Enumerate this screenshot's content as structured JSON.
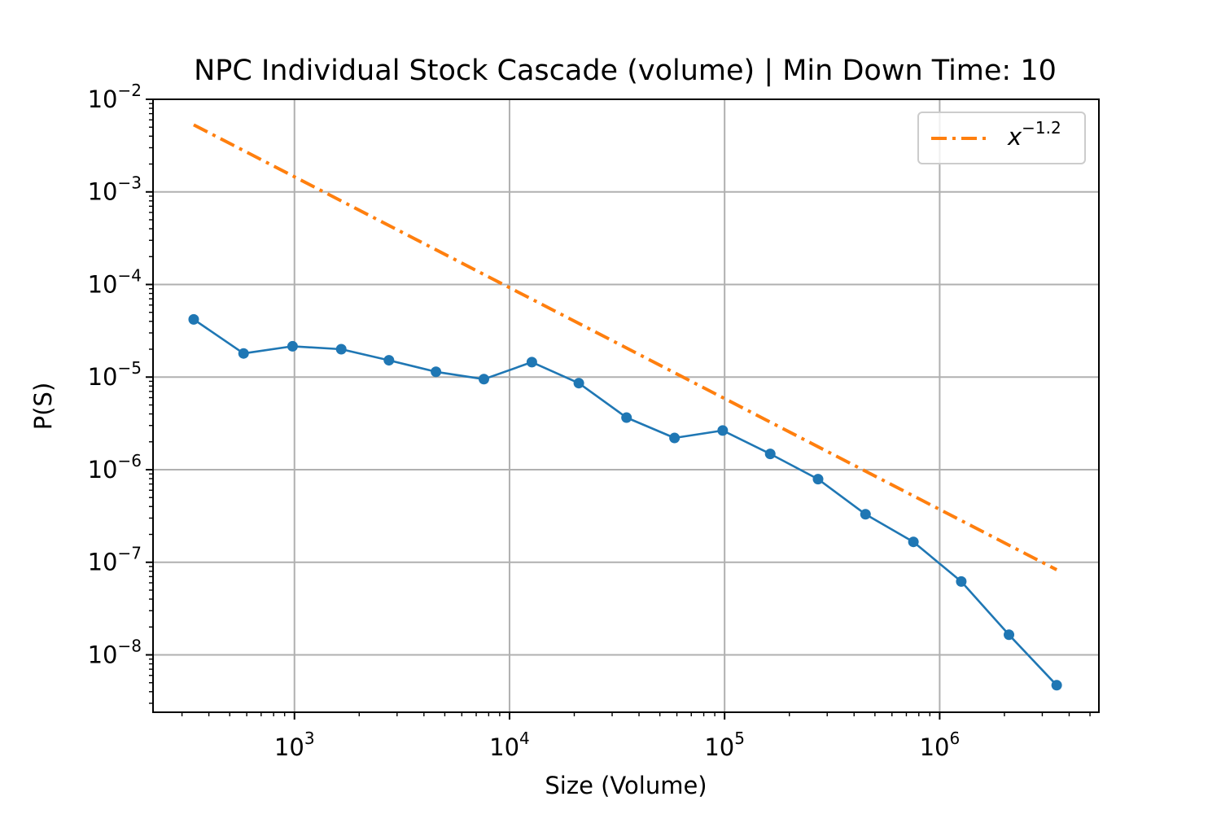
{
  "chart_data": {
    "type": "line",
    "title": "NPC Individual Stock Cascade (volume) | Min Down Time: 10",
    "xlabel": "Size (Volume)",
    "ylabel": "P(S)",
    "xscale": "log",
    "yscale": "log",
    "xlim": [
      220,
      5500000
    ],
    "ylim": [
      2.4e-09,
      0.01
    ],
    "grid": true,
    "legend_position": "top-right",
    "x_ticks": [
      {
        "base": "10",
        "exp": "3"
      },
      {
        "base": "10",
        "exp": "4"
      },
      {
        "base": "10",
        "exp": "5"
      },
      {
        "base": "10",
        "exp": "6"
      }
    ],
    "y_ticks": [
      {
        "base": "10",
        "exp": "−2"
      },
      {
        "base": "10",
        "exp": "−3"
      },
      {
        "base": "10",
        "exp": "−4"
      },
      {
        "base": "10",
        "exp": "−5"
      },
      {
        "base": "10",
        "exp": "−6"
      },
      {
        "base": "10",
        "exp": "−7"
      },
      {
        "base": "10",
        "exp": "−8"
      }
    ],
    "series": [
      {
        "style": "line-marker",
        "color": "#1f77b4",
        "x": [
          340,
          580,
          980,
          1650,
          2750,
          4550,
          7600,
          12700,
          21000,
          35000,
          58500,
          98000,
          163000,
          272000,
          452000,
          755000,
          1260000,
          2100000,
          3500000
        ],
        "values": [
          4.2e-05,
          1.8e-05,
          2.15e-05,
          2e-05,
          1.52e-05,
          1.14e-05,
          9.5e-06,
          1.45e-05,
          8.6e-06,
          3.65e-06,
          2.2e-06,
          2.65e-06,
          1.48e-06,
          7.9e-07,
          3.3e-07,
          1.66e-07,
          6.2e-08,
          1.65e-08,
          4.7e-09
        ]
      },
      {
        "name_base": "x",
        "name_exp": "−1.2",
        "style": "dash-dot",
        "color": "#ff7f0e",
        "x": [
          340,
          3500000
        ],
        "values": [
          0.0053,
          8.3e-08
        ]
      }
    ]
  }
}
